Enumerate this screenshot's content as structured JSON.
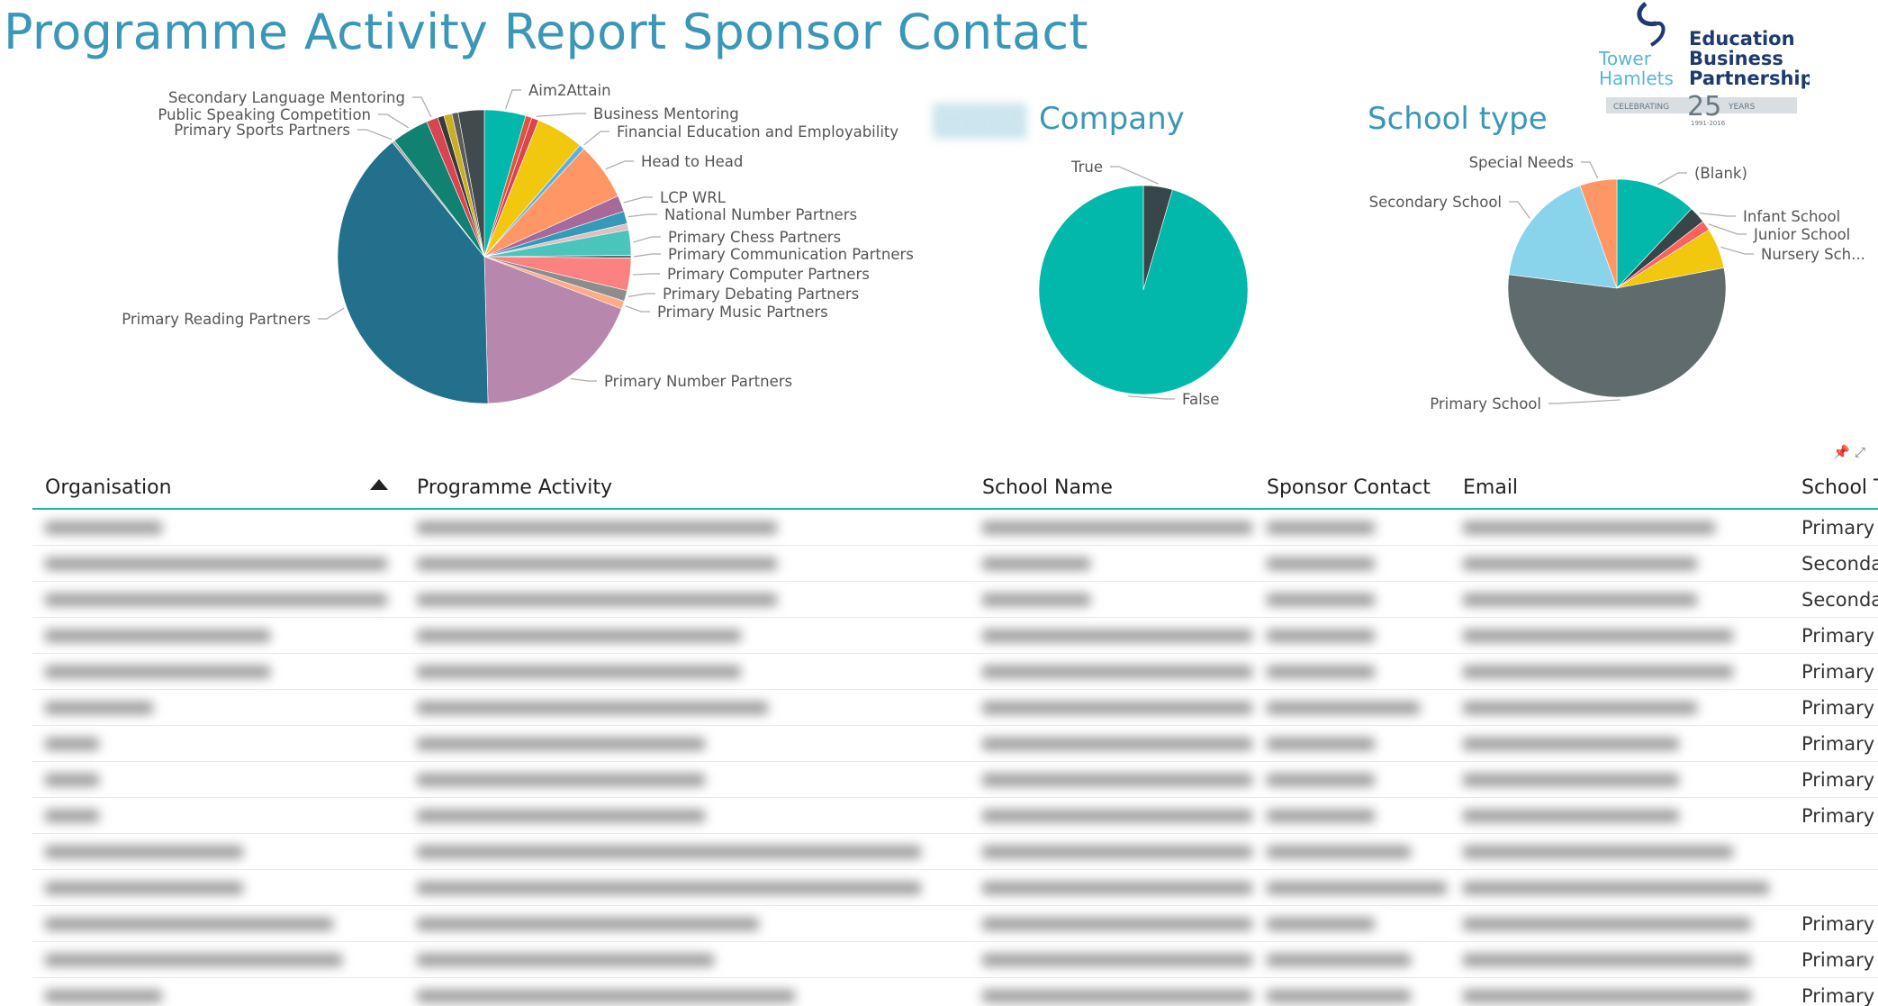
{
  "report_title": "Programme Activity Report Sponsor Contact",
  "logo": {
    "line1": "Education",
    "line2": "Business",
    "line3": "Partnership",
    "left1": "Tower",
    "left2": "Hamlets",
    "badge_left": "CELEBRATING",
    "badge_num": "25",
    "badge_right": "YEARS",
    "years": "1991-2016"
  },
  "chart_data": [
    {
      "type": "pie",
      "title": "",
      "slices": [
        {
          "label": "Aim2Attain",
          "value": 4.6,
          "color": "#01b8aa"
        },
        {
          "label": "",
          "value": 0.7,
          "color": "#e0543d"
        },
        {
          "label": "Business Mentoring",
          "value": 0.8,
          "color": "#d64550"
        },
        {
          "label": "",
          "value": 5.3,
          "color": "#f2c80f"
        },
        {
          "label": "Financial Education and Employability",
          "value": 0.6,
          "color": "#5fb0d8"
        },
        {
          "label": "Head to Head",
          "value": 6.4,
          "color": "#fe9666"
        },
        {
          "label": "LCP WRL",
          "value": 1.8,
          "color": "#a66999"
        },
        {
          "label": "National Number Partners",
          "value": 1.4,
          "color": "#3599b8"
        },
        {
          "label": "",
          "value": 0.7,
          "color": "#dfbfbf"
        },
        {
          "label": "Primary Chess Partners",
          "value": 2.8,
          "color": "#4ac5bb"
        },
        {
          "label": "Primary Communication Partners",
          "value": 0.3,
          "color": "#5f6b6d"
        },
        {
          "label": "Primary Computer Partners",
          "value": 3.6,
          "color": "#fb8281"
        },
        {
          "label": "Primary Debating Partners",
          "value": 1.2,
          "color": "#8d8d8d"
        },
        {
          "label": "Primary Music Partners",
          "value": 0.9,
          "color": "#fdab89"
        },
        {
          "label": "Primary Number Partners",
          "value": 19.0,
          "color": "#b887ad"
        },
        {
          "label": "Primary Reading Partners",
          "value": 40.0,
          "color": "#22708c"
        },
        {
          "label": "Primary Sports Partners",
          "value": 0.3,
          "color": "#9ea9ab"
        },
        {
          "label": "Public Speaking Competition",
          "value": 4.1,
          "color": "#118172"
        },
        {
          "label": "Secondary Language Mentoring",
          "value": 1.3,
          "color": "#d64550"
        },
        {
          "label": "",
          "value": 0.7,
          "color": "#3a3a3a"
        },
        {
          "label": "",
          "value": 0.9,
          "color": "#c9b022"
        },
        {
          "label": "",
          "value": 0.7,
          "color": "#5c5c5c"
        },
        {
          "label": "",
          "value": 2.9,
          "color": "#404a4f"
        }
      ]
    },
    {
      "type": "pie",
      "title": "Company",
      "slices": [
        {
          "label": "True",
          "value": 4.5,
          "color": "#374649"
        },
        {
          "label": "False",
          "value": 95.5,
          "color": "#01b8aa"
        }
      ]
    },
    {
      "type": "pie",
      "title": "School type",
      "slices": [
        {
          "label": "(Blank)",
          "value": 12,
          "color": "#01b8aa"
        },
        {
          "label": "Infant School",
          "value": 2.5,
          "color": "#374649"
        },
        {
          "label": "Junior School",
          "value": 1.5,
          "color": "#fd625e"
        },
        {
          "label": "Nursery Sch...",
          "value": 6,
          "color": "#f2c80f"
        },
        {
          "label": "Primary School",
          "value": 55,
          "color": "#5f6b6d"
        },
        {
          "label": "Secondary School",
          "value": 17.5,
          "color": "#8ad4eb"
        },
        {
          "label": "Special Needs",
          "value": 5.5,
          "color": "#fe9666"
        }
      ]
    }
  ],
  "table": {
    "columns": [
      "Organisation",
      "Programme Activity",
      "School Name",
      "Sponsor Contact",
      "Email",
      "School Type"
    ],
    "rows": [
      [
        "",
        "",
        "",
        "",
        "",
        "Primary School"
      ],
      [
        "",
        "",
        "",
        "",
        "",
        "Secondary School"
      ],
      [
        "",
        "",
        "",
        "",
        "",
        "Secondary School"
      ],
      [
        "",
        "",
        "",
        "",
        "",
        "Primary School"
      ],
      [
        "",
        "",
        "",
        "",
        "",
        "Primary School"
      ],
      [
        "",
        "",
        "",
        "",
        "",
        "Primary School"
      ],
      [
        "",
        "",
        "",
        "",
        "",
        "Primary School"
      ],
      [
        "",
        "",
        "",
        "",
        "",
        "Primary School"
      ],
      [
        "",
        "",
        "",
        "",
        "",
        "Primary School"
      ],
      [
        "",
        "",
        "",
        "",
        "",
        ""
      ],
      [
        "",
        "",
        "",
        "",
        "",
        ""
      ],
      [
        "",
        "",
        "",
        "",
        "",
        "Primary School"
      ],
      [
        "",
        "",
        "",
        "",
        "",
        "Primary School"
      ],
      [
        "",
        "",
        "",
        "",
        "",
        "Primary School"
      ]
    ]
  }
}
